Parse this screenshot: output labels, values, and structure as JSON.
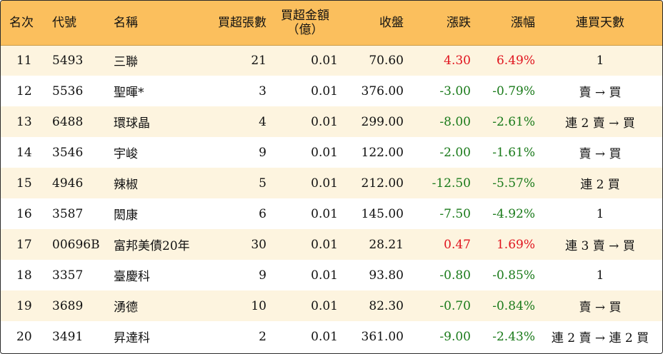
{
  "table": {
    "headers": {
      "rank": "名次",
      "code": "代號",
      "name": "名稱",
      "net_buy_lots": "買超張數",
      "net_buy_amount_line1": "買超金額",
      "net_buy_amount_line2": "（億）",
      "close": "收盤",
      "change": "漲跌",
      "change_pct": "漲幅",
      "streak": "連買天數"
    },
    "colors": {
      "up": "#e0141e",
      "down": "#1a7a1a",
      "header_bg": "#fbbf5d",
      "stripe_bg": "#fdf4df"
    },
    "rows": [
      {
        "rank": "11",
        "code": "5493",
        "name": "三聯",
        "lots": "21",
        "amount": "0.01",
        "close": "70.60",
        "change": "4.30",
        "pct": "6.49%",
        "streak": "1",
        "dir": "up"
      },
      {
        "rank": "12",
        "code": "5536",
        "name": "聖暉*",
        "lots": "3",
        "amount": "0.01",
        "close": "376.00",
        "change": "-3.00",
        "pct": "-0.79%",
        "streak": "賣 → 買",
        "dir": "down"
      },
      {
        "rank": "13",
        "code": "6488",
        "name": "環球晶",
        "lots": "4",
        "amount": "0.01",
        "close": "299.00",
        "change": "-8.00",
        "pct": "-2.61%",
        "streak": "連 2 賣 → 買",
        "dir": "down"
      },
      {
        "rank": "14",
        "code": "3546",
        "name": "宇峻",
        "lots": "9",
        "amount": "0.01",
        "close": "122.00",
        "change": "-2.00",
        "pct": "-1.61%",
        "streak": "賣 → 買",
        "dir": "down"
      },
      {
        "rank": "15",
        "code": "4946",
        "name": "辣椒",
        "lots": "5",
        "amount": "0.01",
        "close": "212.00",
        "change": "-12.50",
        "pct": "-5.57%",
        "streak": "連 2 買",
        "dir": "down"
      },
      {
        "rank": "16",
        "code": "3587",
        "name": "閎康",
        "lots": "6",
        "amount": "0.01",
        "close": "145.00",
        "change": "-7.50",
        "pct": "-4.92%",
        "streak": "1",
        "dir": "down"
      },
      {
        "rank": "17",
        "code": "00696B",
        "name": "富邦美債20年",
        "lots": "30",
        "amount": "0.01",
        "close": "28.21",
        "change": "0.47",
        "pct": "1.69%",
        "streak": "連 3 賣 → 買",
        "dir": "up"
      },
      {
        "rank": "18",
        "code": "3357",
        "name": "臺慶科",
        "lots": "9",
        "amount": "0.01",
        "close": "93.80",
        "change": "-0.80",
        "pct": "-0.85%",
        "streak": "1",
        "dir": "down"
      },
      {
        "rank": "19",
        "code": "3689",
        "name": "湧德",
        "lots": "10",
        "amount": "0.01",
        "close": "82.30",
        "change": "-0.70",
        "pct": "-0.84%",
        "streak": "賣 → 買",
        "dir": "down"
      },
      {
        "rank": "20",
        "code": "3491",
        "name": "昇達科",
        "lots": "2",
        "amount": "0.01",
        "close": "361.00",
        "change": "-9.00",
        "pct": "-2.43%",
        "streak": "連 2 賣 → 連 2 買",
        "dir": "down"
      }
    ]
  }
}
